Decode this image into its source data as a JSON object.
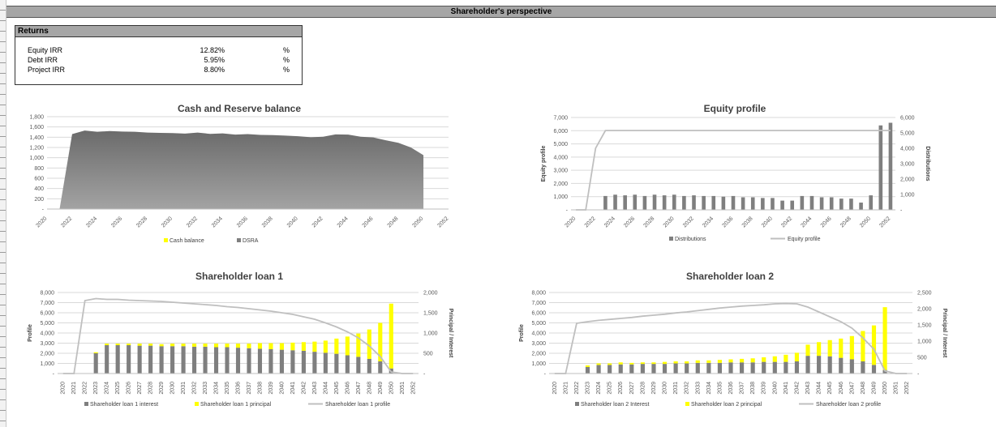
{
  "sheet": {
    "title": "Shareholder's perspective"
  },
  "returns": {
    "title": "Returns",
    "rows": [
      {
        "label": "Equity IRR",
        "value": "12.82%",
        "unit": "%"
      },
      {
        "label": "Debt IRR",
        "value": "5.95%",
        "unit": "%"
      },
      {
        "label": "Project IRR",
        "value": "8.80%",
        "unit": "%"
      }
    ]
  },
  "colors": {
    "dark_bar": "#7f7f7f",
    "yellow": "#ffff00",
    "line": "#bfbfbf",
    "area": "#808080",
    "grid": "#d9d9d9"
  },
  "chart_data": [
    {
      "id": "cash",
      "type": "area",
      "title": "Cash and Reserve balance",
      "x": [
        2020,
        2021,
        2022,
        2023,
        2024,
        2025,
        2026,
        2027,
        2028,
        2029,
        2030,
        2031,
        2032,
        2033,
        2034,
        2035,
        2036,
        2037,
        2038,
        2039,
        2040,
        2041,
        2042,
        2043,
        2044,
        2045,
        2046,
        2047,
        2048,
        2049,
        2050
      ],
      "xticks": [
        "2020",
        "2022",
        "2024",
        "2026",
        "2028",
        "2030",
        "2032",
        "2034",
        "2036",
        "2038",
        "2040",
        "2042",
        "2044",
        "2046",
        "2048",
        "2050",
        "2052"
      ],
      "xlim": [
        2020,
        2052
      ],
      "ylim": [
        0,
        1800
      ],
      "yticks": [
        "-",
        "200",
        "400",
        "600",
        "800",
        "1,000",
        "1,200",
        "1,400",
        "1,600",
        "1,800"
      ],
      "series": [
        {
          "name": "Cash balance",
          "values": [
            0,
            0,
            0,
            0,
            0,
            0,
            0,
            0,
            0,
            0,
            0,
            0,
            0,
            0,
            0,
            0,
            0,
            0,
            0,
            0,
            0,
            0,
            0,
            0,
            0,
            0,
            0,
            0,
            0,
            0,
            0
          ]
        },
        {
          "name": "DSRA",
          "values": [
            0,
            0,
            1460,
            1530,
            1505,
            1520,
            1510,
            1505,
            1490,
            1485,
            1480,
            1470,
            1490,
            1465,
            1475,
            1450,
            1460,
            1445,
            1440,
            1430,
            1420,
            1400,
            1410,
            1455,
            1450,
            1410,
            1395,
            1340,
            1290,
            1200,
            1050
          ]
        }
      ],
      "legend": "bottom"
    },
    {
      "id": "equity",
      "type": "bar",
      "title": "Equity profile",
      "ylabel": "Equity profile",
      "y2label": "Distributions",
      "x": [
        2020,
        2021,
        2022,
        2023,
        2024,
        2025,
        2026,
        2027,
        2028,
        2029,
        2030,
        2031,
        2032,
        2033,
        2034,
        2035,
        2036,
        2037,
        2038,
        2039,
        2040,
        2041,
        2042,
        2043,
        2044,
        2045,
        2046,
        2047,
        2048,
        2049,
        2050,
        2051,
        2052
      ],
      "xticks": [
        "2020",
        "2022",
        "2024",
        "2026",
        "2028",
        "2030",
        "2032",
        "2034",
        "2036",
        "2038",
        "2040",
        "2042",
        "2044",
        "2046",
        "2048",
        "2050",
        "2052"
      ],
      "ylim": [
        0,
        7000
      ],
      "yticks": [
        "-",
        "1,000",
        "2,000",
        "3,000",
        "4,000",
        "5,000",
        "6,000",
        "7,000"
      ],
      "y2lim": [
        0,
        6000
      ],
      "y2ticks": [
        "-",
        "1,000",
        "2,000",
        "3,000",
        "4,000",
        "5,000",
        "6,000"
      ],
      "series": [
        {
          "name": "Distributions",
          "kind": "bar",
          "values": [
            0,
            0,
            0,
            1050,
            1150,
            1100,
            1150,
            1050,
            1150,
            1100,
            1150,
            1050,
            1100,
            1050,
            1050,
            1000,
            1050,
            950,
            950,
            900,
            900,
            700,
            700,
            1050,
            1050,
            950,
            950,
            850,
            850,
            550,
            1100,
            6400,
            6600
          ]
        },
        {
          "name": "Equity profile",
          "kind": "line",
          "values": [
            0,
            0,
            4000,
            5150,
            5150,
            5150,
            5150,
            5150,
            5150,
            5150,
            5150,
            5150,
            5150,
            5150,
            5150,
            5150,
            5150,
            5150,
            5150,
            5150,
            5150,
            5150,
            5150,
            5150,
            5150,
            5150,
            5150,
            5150,
            5150,
            5150,
            5150,
            5150,
            5150
          ]
        }
      ],
      "legend": "bottom"
    },
    {
      "id": "loan1",
      "type": "bar",
      "title": "Shareholder loan 1",
      "ylabel": "Profile",
      "y2label": "Principal / Interest",
      "x": [
        "2020",
        "2021",
        "2022",
        "2023",
        "2024",
        "2025",
        "2026",
        "2027",
        "2028",
        "2029",
        "2030",
        "2031",
        "2032",
        "2033",
        "2034",
        "2035",
        "2036",
        "2037",
        "2038",
        "2039",
        "2040",
        "2041",
        "2042",
        "2043",
        "2044",
        "2045",
        "2046",
        "2047",
        "2048",
        "2049",
        "2050",
        "2051",
        "2052"
      ],
      "ylim": [
        0,
        8000
      ],
      "yticks": [
        "-",
        "1,000",
        "2,000",
        "3,000",
        "4,000",
        "5,000",
        "6,000",
        "7,000",
        "8,000"
      ],
      "y2lim": [
        0,
        2000
      ],
      "y2ticks": [
        "-",
        "500",
        "1,000",
        "1,500",
        "2,000"
      ],
      "series": [
        {
          "name": "Shareholder loan 1 interest",
          "kind": "stack",
          "values": [
            0,
            0,
            0,
            2000,
            2800,
            2800,
            2800,
            2750,
            2750,
            2700,
            2700,
            2700,
            2650,
            2650,
            2600,
            2600,
            2550,
            2500,
            2450,
            2400,
            2350,
            2300,
            2250,
            2150,
            2050,
            1950,
            1800,
            1650,
            1450,
            1200,
            500,
            0,
            0
          ]
        },
        {
          "name": "Shareholder loan 1 principal",
          "kind": "stack",
          "values": [
            0,
            0,
            0,
            100,
            150,
            150,
            150,
            200,
            200,
            200,
            250,
            250,
            300,
            300,
            350,
            350,
            400,
            450,
            550,
            600,
            650,
            750,
            850,
            1000,
            1200,
            1500,
            1850,
            2300,
            2900,
            3800,
            6400,
            0,
            0
          ]
        },
        {
          "name": "Shareholder loan 1 profile",
          "kind": "line",
          "values": [
            0,
            0,
            1800,
            1850,
            1830,
            1830,
            1810,
            1800,
            1790,
            1780,
            1760,
            1740,
            1720,
            1700,
            1680,
            1650,
            1630,
            1600,
            1570,
            1540,
            1500,
            1460,
            1400,
            1340,
            1250,
            1150,
            1030,
            880,
            680,
            420,
            40,
            0,
            0
          ]
        }
      ],
      "legend": "bottom"
    },
    {
      "id": "loan2",
      "type": "bar",
      "title": "Shareholder loan 2",
      "ylabel": "Profile",
      "y2label": "Principal / Interest",
      "x": [
        "2020",
        "2021",
        "2022",
        "2023",
        "2024",
        "2025",
        "2026",
        "2027",
        "2028",
        "2029",
        "2030",
        "2031",
        "2032",
        "2033",
        "2034",
        "2035",
        "2036",
        "2037",
        "2038",
        "2039",
        "2040",
        "2041",
        "2042",
        "2043",
        "2044",
        "2045",
        "2046",
        "2047",
        "2048",
        "2049",
        "2050",
        "2051",
        "2052"
      ],
      "ylim": [
        0,
        8000
      ],
      "yticks": [
        "-",
        "1,000",
        "2,000",
        "3,000",
        "4,000",
        "5,000",
        "6,000",
        "7,000",
        "8,000"
      ],
      "y2lim": [
        0,
        2500
      ],
      "y2ticks": [
        "-",
        "500",
        "1,000",
        "1,500",
        "2,000",
        "2,500"
      ],
      "series": [
        {
          "name": "Shareholder loan 2 Interest",
          "kind": "stack",
          "values": [
            0,
            0,
            0,
            650,
            850,
            850,
            900,
            900,
            950,
            950,
            950,
            1000,
            1000,
            1050,
            1050,
            1050,
            1100,
            1100,
            1100,
            1150,
            1150,
            1150,
            1200,
            1750,
            1750,
            1700,
            1550,
            1400,
            1200,
            850,
            350,
            0,
            0
          ]
        },
        {
          "name": "Shareholder loan 2 principal",
          "kind": "stack",
          "values": [
            0,
            0,
            0,
            150,
            150,
            150,
            200,
            150,
            150,
            150,
            200,
            200,
            200,
            250,
            250,
            300,
            300,
            350,
            400,
            450,
            550,
            700,
            850,
            1100,
            1350,
            1600,
            1900,
            2300,
            3000,
            3900,
            6200,
            0,
            0
          ]
        },
        {
          "name": "Shareholder loan 2 profile",
          "kind": "line",
          "values": [
            0,
            0,
            1550,
            1600,
            1640,
            1670,
            1700,
            1730,
            1770,
            1800,
            1830,
            1870,
            1900,
            1940,
            1980,
            2020,
            2050,
            2080,
            2100,
            2120,
            2150,
            2160,
            2150,
            2050,
            1900,
            1750,
            1600,
            1400,
            1100,
            750,
            80,
            0,
            0
          ]
        }
      ],
      "legend": "bottom"
    }
  ]
}
